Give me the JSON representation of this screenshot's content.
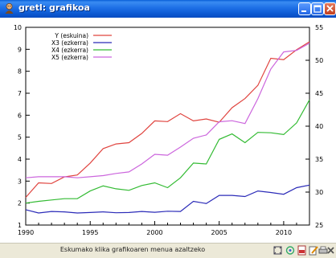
{
  "window": {
    "title": "gretl: grafikoa"
  },
  "status": {
    "text": "Eskumako klika grafikoaren menua azaltzeko"
  },
  "toolbar": {
    "icons": [
      "zoom-icon",
      "palette-icon",
      "pdf-icon",
      "edit-icon",
      "print-icon",
      "close-tool-icon"
    ]
  },
  "colors": {
    "y": "#e0443f",
    "x3": "#2b2bb8",
    "x4": "#33bb33",
    "x5": "#cc66dd"
  },
  "chart_data": {
    "type": "line",
    "x": [
      1990,
      1991,
      1992,
      1993,
      1994,
      1995,
      1996,
      1997,
      1998,
      1999,
      2000,
      2001,
      2002,
      2003,
      2004,
      2005,
      2006,
      2007,
      2008,
      2009,
      2010,
      2011,
      2012
    ],
    "xticks": [
      1990,
      1995,
      2000,
      2005,
      2010
    ],
    "left_axis": {
      "ylim": [
        1,
        10
      ],
      "ticks": [
        1,
        2,
        3,
        4,
        5,
        6,
        7,
        8,
        9,
        10
      ]
    },
    "right_axis": {
      "ylim": [
        25,
        55
      ],
      "ticks": [
        25,
        30,
        35,
        40,
        45,
        50,
        55
      ]
    },
    "legend": "top-left",
    "grid": false,
    "series": [
      {
        "name": "Y (eskuina)",
        "axis": "right",
        "color": "#e0443f",
        "values": [
          29.2,
          31.4,
          31.3,
          32.3,
          32.6,
          34.4,
          36.6,
          37.3,
          37.5,
          38.9,
          40.8,
          40.7,
          41.9,
          40.8,
          41.1,
          40.6,
          42.8,
          44.2,
          46.2,
          50.3,
          50.1,
          51.6,
          52.8
        ]
      },
      {
        "name": "X3 (ezkerra)",
        "axis": "left",
        "color": "#2b2bb8",
        "values": [
          1.7,
          1.55,
          1.62,
          1.6,
          1.55,
          1.57,
          1.6,
          1.56,
          1.57,
          1.62,
          1.58,
          1.63,
          1.62,
          2.08,
          1.98,
          2.35,
          2.35,
          2.3,
          2.55,
          2.48,
          2.4,
          2.7,
          2.82
        ]
      },
      {
        "name": "X4 (ezkerra)",
        "axis": "left",
        "color": "#33bb33",
        "values": [
          2.0,
          2.08,
          2.14,
          2.2,
          2.2,
          2.55,
          2.78,
          2.65,
          2.58,
          2.8,
          2.92,
          2.7,
          3.15,
          3.82,
          3.78,
          4.9,
          5.15,
          4.75,
          5.22,
          5.2,
          5.12,
          5.65,
          6.7
        ]
      },
      {
        "name": "X5 (ezkerra)",
        "axis": "left",
        "color": "#cc66dd",
        "values": [
          3.15,
          3.2,
          3.2,
          3.2,
          3.15,
          3.2,
          3.25,
          3.35,
          3.42,
          3.78,
          4.22,
          4.18,
          4.55,
          4.95,
          5.1,
          5.7,
          5.75,
          5.62,
          6.75,
          8.1,
          8.88,
          8.95,
          9.28
        ]
      }
    ]
  }
}
